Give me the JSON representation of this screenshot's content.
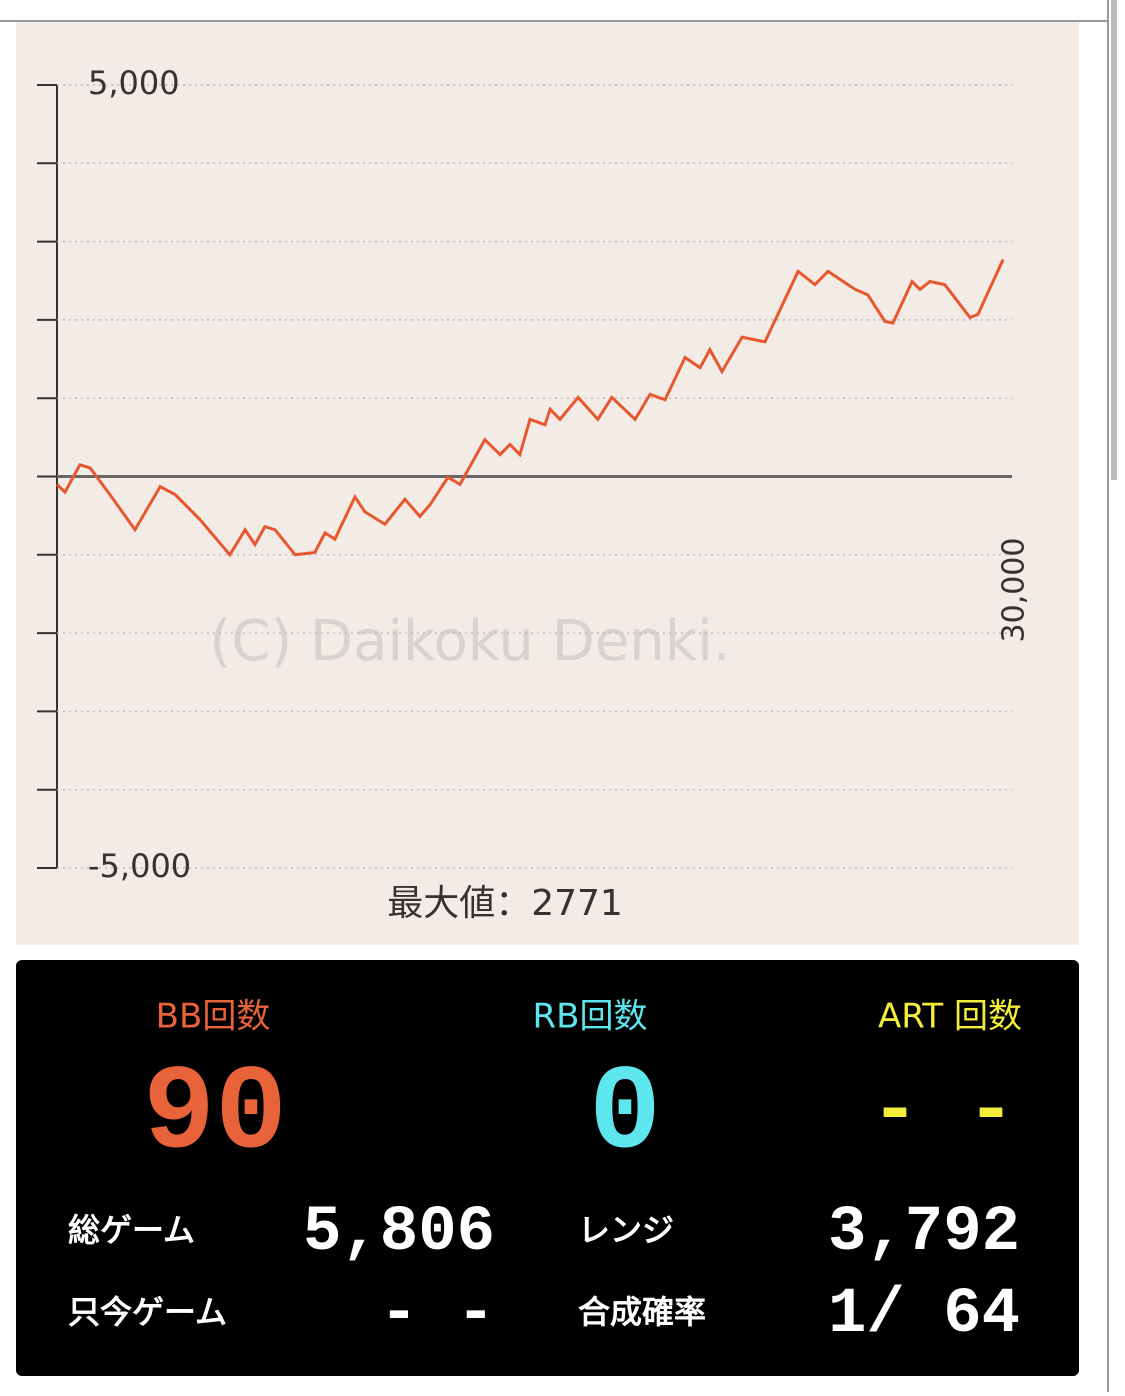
{
  "chart_data": {
    "type": "line",
    "xlim": [
      0,
      30000
    ],
    "xticks": [
      {
        "value": 30000,
        "label": "30,000"
      }
    ],
    "ylim": [
      -5000,
      5000
    ],
    "yticks": [
      {
        "value": -5000,
        "label": "-5,000"
      },
      -4000,
      -3000,
      -2000,
      -1000,
      0,
      1000,
      2000,
      3000,
      4000,
      {
        "value": 5000,
        "label": "5,000"
      }
    ],
    "grid": true,
    "watermark": "(C) Daikoku Denki.",
    "max_label": "最大値：2771",
    "series": [
      {
        "color": "#e8582e",
        "x": [
          0,
          250,
          720,
          1040,
          1660,
          2450,
          3240,
          3710,
          4490,
          5430,
          5910,
          6220,
          6530,
          6850,
          7480,
          8100,
          8420,
          8730,
          9360,
          9670,
          10300,
          10930,
          11400,
          11720,
          12280,
          12660,
          13440,
          13920,
          14230,
          14540,
          14860,
          15330,
          15490,
          15800,
          16370,
          16990,
          17430,
          18160,
          18630,
          19100,
          19730,
          20200,
          20510,
          20890,
          21520,
          22240,
          23280,
          23810,
          24220,
          25070,
          25470,
          26010,
          26260,
          26860,
          27110,
          27420,
          27890,
          28680,
          28930,
          29720
        ],
        "values": [
          -100,
          -200,
          150,
          110,
          -230,
          -680,
          -130,
          -230,
          -550,
          -1000,
          -680,
          -870,
          -640,
          -680,
          -1000,
          -970,
          -720,
          -800,
          -260,
          -450,
          -610,
          -290,
          -510,
          -360,
          -10,
          -100,
          470,
          280,
          410,
          280,
          730,
          660,
          860,
          730,
          1010,
          730,
          1010,
          730,
          1050,
          980,
          1520,
          1390,
          1620,
          1340,
          1780,
          1720,
          2620,
          2450,
          2620,
          2390,
          2320,
          1980,
          1960,
          2490,
          2390,
          2490,
          2450,
          2030,
          2070,
          2771
        ]
      }
    ]
  },
  "panel": {
    "bb_label": "BB回数",
    "bb_value": "90",
    "rb_label": "RB回数",
    "rb_value": "0",
    "art_label": "ART 回数",
    "art_value": "- -",
    "rows": [
      [
        "総ゲーム",
        "5,806",
        "レンジ",
        "3,792"
      ],
      [
        "只今ゲーム",
        "- -",
        "合成確率",
        "1/  64"
      ]
    ]
  }
}
